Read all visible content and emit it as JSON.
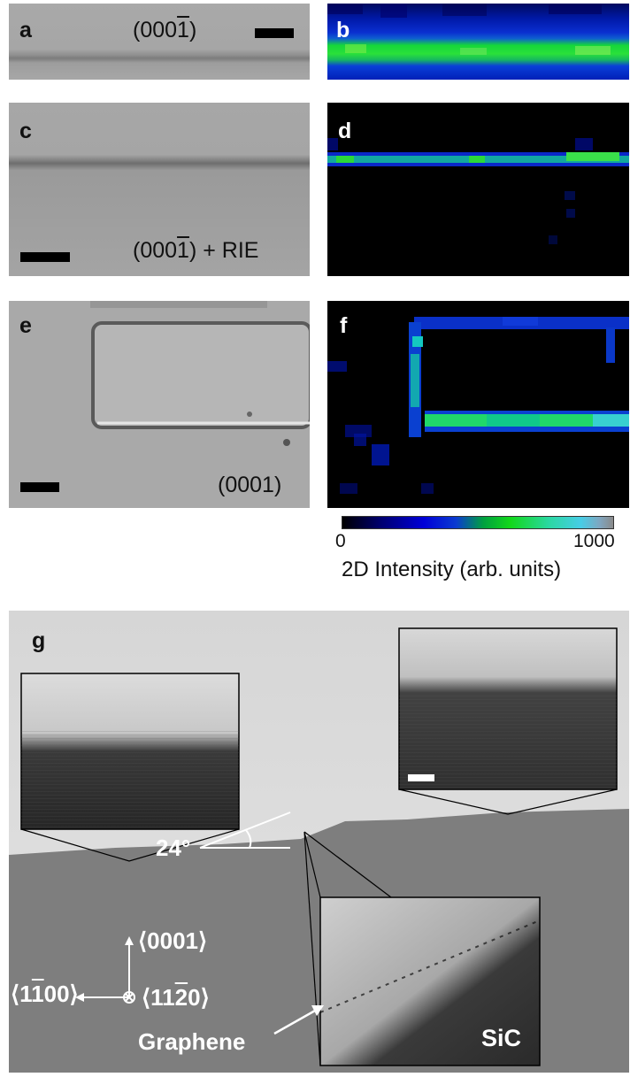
{
  "panels": {
    "a": {
      "label": "a",
      "caption_prefix": "(000",
      "caption_bar": "1",
      "caption_suffix": ")"
    },
    "b": {
      "label": "b"
    },
    "c": {
      "label": "c",
      "caption_prefix": "(000",
      "caption_bar": "1",
      "caption_suffix": ") + RIE"
    },
    "d": {
      "label": "d"
    },
    "e": {
      "label": "e",
      "caption": "(0001)"
    },
    "f": {
      "label": "f"
    },
    "g": {
      "label": "g",
      "angle": "24°",
      "dir_up": "⟨0001⟩",
      "dir_left": "⟨1̅100⟩",
      "dir_left_a": "⟨1",
      "dir_left_b": "1",
      "dir_left_c": "00⟩",
      "dir_into_a": "⟨11",
      "dir_into_b": "2",
      "dir_into_c": "0⟩",
      "graphene_label": "Graphene",
      "sic_label": "SiC"
    }
  },
  "colorbar": {
    "min": "0",
    "max": "1000",
    "title": "2D Intensity (arb. units)",
    "colors": [
      "#000000",
      "#0000d8",
      "#12d81a",
      "#47cde6",
      "#8a8a8a"
    ]
  }
}
